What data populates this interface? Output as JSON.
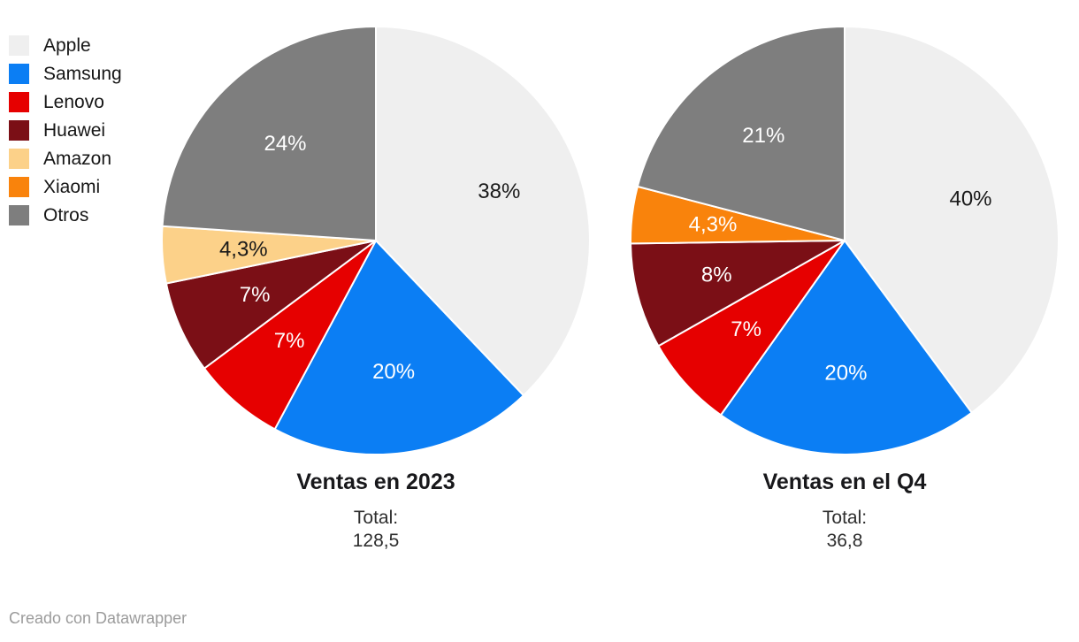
{
  "legend": {
    "items": [
      {
        "label": "Apple",
        "color": "#efefef"
      },
      {
        "label": "Samsung",
        "color": "#0b7ef4"
      },
      {
        "label": "Lenovo",
        "color": "#e60000"
      },
      {
        "label": "Huawei",
        "color": "#7b0f16"
      },
      {
        "label": "Amazon",
        "color": "#fcd189"
      },
      {
        "label": "Xiaomi",
        "color": "#f9830c"
      },
      {
        "label": "Otros",
        "color": "#7e7e7e"
      }
    ]
  },
  "chart_data": [
    {
      "type": "pie",
      "title": "Ventas en 2023",
      "total_label": "Total:",
      "total_value": "128,5",
      "legend_position": "top-left",
      "start_angle": "top",
      "direction": "clockwise",
      "slices": [
        {
          "label": "Apple",
          "value": 38,
          "display": "38%",
          "color": "#efefef",
          "text_color": "#1a1a1a"
        },
        {
          "label": "Samsung",
          "value": 20,
          "display": "20%",
          "color": "#0b7ef4",
          "text_color": "#ffffff"
        },
        {
          "label": "Lenovo",
          "value": 7,
          "display": "7%",
          "color": "#e60000",
          "text_color": "#ffffff"
        },
        {
          "label": "Huawei",
          "value": 7,
          "display": "7%",
          "color": "#7b0f16",
          "text_color": "#ffffff"
        },
        {
          "label": "Amazon",
          "value": 4.3,
          "display": "4,3%",
          "color": "#fcd189",
          "text_color": "#1a1a1a"
        },
        {
          "label": "Otros",
          "value": 24,
          "display": "24%",
          "color": "#7e7e7e",
          "text_color": "#ffffff"
        }
      ]
    },
    {
      "type": "pie",
      "title": "Ventas en el Q4",
      "total_label": "Total:",
      "total_value": "36,8",
      "legend_position": "top-left",
      "start_angle": "top",
      "direction": "clockwise",
      "slices": [
        {
          "label": "Apple",
          "value": 40,
          "display": "40%",
          "color": "#efefef",
          "text_color": "#1a1a1a"
        },
        {
          "label": "Samsung",
          "value": 20,
          "display": "20%",
          "color": "#0b7ef4",
          "text_color": "#ffffff"
        },
        {
          "label": "Lenovo",
          "value": 7,
          "display": "7%",
          "color": "#e60000",
          "text_color": "#ffffff"
        },
        {
          "label": "Huawei",
          "value": 8,
          "display": "8%",
          "color": "#7b0f16",
          "text_color": "#ffffff"
        },
        {
          "label": "Xiaomi",
          "value": 4.3,
          "display": "4,3%",
          "color": "#f9830c",
          "text_color": "#ffffff"
        },
        {
          "label": "Otros",
          "value": 21,
          "display": "21%",
          "color": "#7e7e7e",
          "text_color": "#ffffff"
        }
      ]
    }
  ],
  "footer": {
    "credit": "Creado con Datawrapper"
  }
}
